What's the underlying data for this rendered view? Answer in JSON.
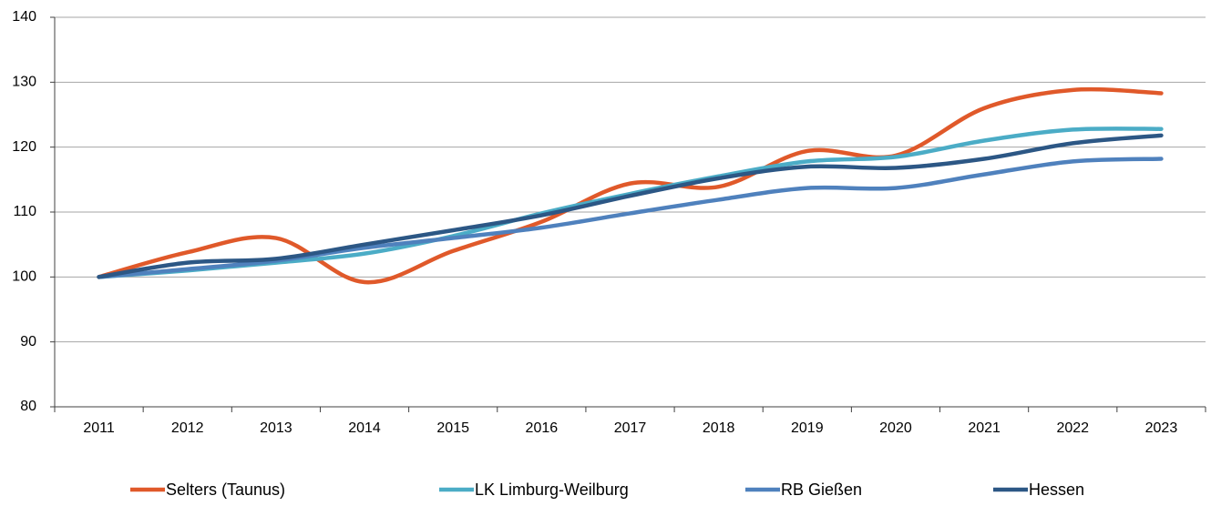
{
  "chart_data": {
    "type": "line",
    "categories": [
      "2011",
      "2012",
      "2013",
      "2014",
      "2015",
      "2016",
      "2017",
      "2018",
      "2019",
      "2020",
      "2021",
      "2022",
      "2023"
    ],
    "series": [
      {
        "name": "Selters (Taunus)",
        "color": "#e0592a",
        "values": [
          100,
          103.8,
          106,
          99.2,
          104,
          108.5,
          114.4,
          113.9,
          119.4,
          118.7,
          126,
          128.8,
          128.3
        ]
      },
      {
        "name": "LK Limburg-Weilburg",
        "color": "#4bacc6",
        "values": [
          100,
          101,
          102.2,
          103.6,
          106.3,
          109.8,
          112.8,
          115.5,
          117.8,
          118.5,
          121,
          122.7,
          122.8
        ]
      },
      {
        "name": "RB Gießen",
        "color": "#4f81bd",
        "values": [
          100,
          101.2,
          102.5,
          104.5,
          106,
          107.6,
          109.8,
          111.9,
          113.7,
          113.7,
          115.8,
          117.8,
          118.2
        ]
      },
      {
        "name": "Hessen",
        "color": "#2c5785",
        "values": [
          100,
          102.2,
          102.8,
          105,
          107.2,
          109.5,
          112.5,
          115.2,
          117,
          116.8,
          118.2,
          120.6,
          121.8
        ]
      }
    ],
    "ylim": [
      80,
      140
    ],
    "yticks": [
      80,
      90,
      100,
      110,
      120,
      130,
      140
    ],
    "grid": true,
    "legend": "bottom"
  }
}
